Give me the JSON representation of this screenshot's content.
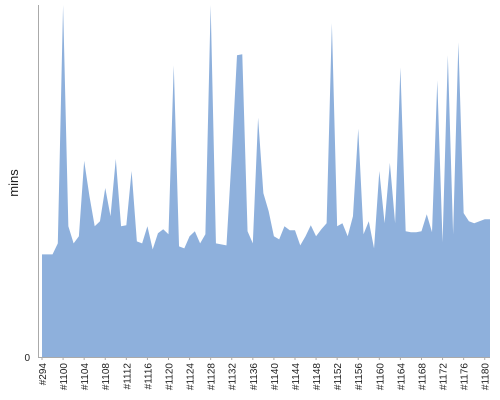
{
  "chart_data": {
    "type": "area",
    "ylabel": "mins",
    "y_tick_labels": [
      "0"
    ],
    "ylim": [
      0,
      350
    ],
    "grid": false,
    "fill_color": "#8eb0dc",
    "x_tick_labels": [
      "#294",
      "#1100",
      "#1104",
      "#1108",
      "#1112",
      "#1116",
      "#1120",
      "#1124",
      "#1128",
      "#1132",
      "#1136",
      "#1140",
      "#1144",
      "#1148",
      "#1152",
      "#1156",
      "#1160",
      "#1164",
      "#1168",
      "#1172",
      "#1176",
      "#1180"
    ],
    "x": [
      "#294",
      "#1097",
      "#1098",
      "#1099",
      "#1100",
      "#1101",
      "#1102",
      "#1103",
      "#1104",
      "#1105",
      "#1106",
      "#1107",
      "#1108",
      "#1109",
      "#1110",
      "#1111",
      "#1112",
      "#1113",
      "#1114",
      "#1115",
      "#1116",
      "#1117",
      "#1118",
      "#1119",
      "#1120",
      "#1121",
      "#1122",
      "#1123",
      "#1124",
      "#1125",
      "#1126",
      "#1127",
      "#1128",
      "#1129",
      "#1130",
      "#1131",
      "#1132",
      "#1133",
      "#1134",
      "#1135",
      "#1136",
      "#1137",
      "#1138",
      "#1139",
      "#1140",
      "#1141",
      "#1142",
      "#1143",
      "#1144",
      "#1145",
      "#1146",
      "#1147",
      "#1148",
      "#1149",
      "#1150",
      "#1151",
      "#1152",
      "#1153",
      "#1154",
      "#1155",
      "#1156",
      "#1157",
      "#1158",
      "#1159",
      "#1160",
      "#1161",
      "#1162",
      "#1163",
      "#1164",
      "#1165",
      "#1166",
      "#1167",
      "#1168",
      "#1169",
      "#1170",
      "#1171",
      "#1172",
      "#1173",
      "#1174",
      "#1175",
      "#1176",
      "#1177",
      "#1178",
      "#1179",
      "#1180",
      "#1181"
    ],
    "values": [
      102,
      102,
      102,
      113,
      350,
      130,
      113,
      120,
      195,
      160,
      130,
      135,
      168,
      140,
      197,
      130,
      131,
      185,
      115,
      113,
      130,
      107,
      123,
      127,
      122,
      290,
      110,
      108,
      120,
      125,
      113,
      122,
      350,
      113,
      112,
      111,
      200,
      300,
      301,
      125,
      113,
      238,
      163,
      145,
      120,
      117,
      130,
      126,
      126,
      111,
      120,
      131,
      120,
      127,
      133,
      332,
      130,
      133,
      120,
      140,
      227,
      122,
      135,
      108,
      185,
      133,
      193,
      133,
      288,
      125,
      124,
      124,
      125,
      142,
      124,
      275,
      114,
      300,
      122,
      313,
      143,
      135,
      133,
      135,
      137,
      137
    ]
  }
}
